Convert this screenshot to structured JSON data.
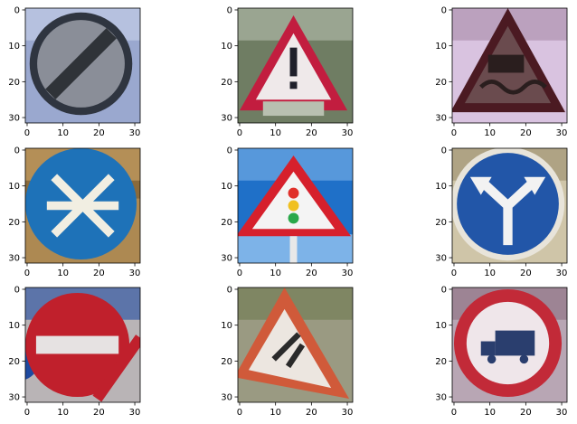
{
  "chart_data": [
    {
      "type": "image",
      "panel": 1,
      "content": "derestriction (end of all limits) sign",
      "xticks": [
        "0",
        "10",
        "20",
        "30"
      ],
      "yticks": [
        "0",
        "10",
        "20",
        "30"
      ],
      "xlim": [
        -0.5,
        31.5
      ],
      "ylim": [
        31.5,
        -0.5
      ],
      "colors": {
        "bg": "#9aa8cf",
        "bg2": "#c9d2ea",
        "ring": "#2f3540",
        "face": "#8a8e98",
        "band": "#2f3338"
      }
    },
    {
      "type": "image",
      "panel": 2,
      "content": "red-bordered triangular general caution (!) sign with supplementary plate",
      "xticks": [
        "0",
        "10",
        "20",
        "30"
      ],
      "yticks": [
        "0",
        "10",
        "20",
        "30"
      ],
      "xlim": [
        -0.5,
        31.5
      ],
      "ylim": [
        31.5,
        -0.5
      ],
      "colors": {
        "bg": "#6f7d63",
        "bg2": "#b8c0b0",
        "border": "#c21d3f",
        "face": "#efe9ea",
        "mark": "#1f1f2a"
      }
    },
    {
      "type": "image",
      "panel": 3,
      "content": "dark triangular slippery road sign",
      "xticks": [
        "0",
        "10",
        "20",
        "30"
      ],
      "yticks": [
        "0",
        "10",
        "20",
        "30"
      ],
      "xlim": [
        -0.5,
        31.5
      ],
      "ylim": [
        31.5,
        -0.5
      ],
      "colors": {
        "bg": "#d9c3e0",
        "bg2": "#a68aa6",
        "border": "#4b1a22",
        "face": "#6a4b4e",
        "mark": "#2a1e1e"
      }
    },
    {
      "type": "image",
      "panel": 4,
      "content": "blue circular mandatory sign with white arrows",
      "xticks": [
        "0",
        "10",
        "20",
        "30"
      ],
      "yticks": [
        "0",
        "10",
        "20",
        "30"
      ],
      "xlim": [
        -0.5,
        31.5
      ],
      "ylim": [
        31.5,
        -0.5
      ],
      "colors": {
        "bg": "#8a6a3a",
        "bg2": "#d0a86a",
        "face": "#1e72b8",
        "mark": "#f1eee2"
      }
    },
    {
      "type": "image",
      "panel": 5,
      "content": "red-bordered triangular traffic signals ahead sign on blue sky",
      "xticks": [
        "0",
        "10",
        "20",
        "30"
      ],
      "yticks": [
        "0",
        "10",
        "20",
        "30"
      ],
      "xlim": [
        -0.5,
        31.5
      ],
      "ylim": [
        31.5,
        -0.5
      ],
      "colors": {
        "bg": "#1f70c8",
        "bg2": "#7db3e8",
        "border": "#d6202c",
        "face": "#f4f4f4",
        "red": "#e0302a",
        "amber": "#f0c020",
        "green": "#2aa84a"
      }
    },
    {
      "type": "image",
      "panel": 6,
      "content": "blue circular keep left or right sign with forked arrows",
      "xticks": [
        "0",
        "10",
        "20",
        "30"
      ],
      "yticks": [
        "0",
        "10",
        "20",
        "30"
      ],
      "xlim": [
        -0.5,
        31.5
      ],
      "ylim": [
        31.5,
        -0.5
      ],
      "colors": {
        "bg": "#cfc5a8",
        "bg2": "#9a8c6c",
        "ring": "#e8e4da",
        "face": "#2256a8",
        "mark": "#f2f2f2"
      }
    },
    {
      "type": "image",
      "panel": 7,
      "content": "red circular no entry sign with white bar",
      "xticks": [
        "0",
        "10",
        "20",
        "30"
      ],
      "yticks": [
        "0",
        "10",
        "20",
        "30"
      ],
      "xlim": [
        -0.5,
        31.5
      ],
      "ylim": [
        31.5,
        -0.5
      ],
      "colors": {
        "bg": "#b9b4b6",
        "bg2": "#1e4aa0",
        "face": "#c0202c",
        "mark": "#e6e2e2"
      }
    },
    {
      "type": "image",
      "panel": 8,
      "content": "tilted red-bordered triangular roadworks sign",
      "xticks": [
        "0",
        "10",
        "20",
        "30"
      ],
      "yticks": [
        "0",
        "10",
        "20",
        "30"
      ],
      "xlim": [
        -0.5,
        31.5
      ],
      "ylim": [
        31.5,
        -0.5
      ],
      "colors": {
        "bg": "#9a9a82",
        "bg2": "#6e7a4e",
        "border": "#d05a3a",
        "face": "#ece6e0",
        "mark": "#2a2a2a"
      }
    },
    {
      "type": "image",
      "panel": 9,
      "content": "red-ringed circular no trucks sign",
      "xticks": [
        "0",
        "10",
        "20",
        "30"
      ],
      "yticks": [
        "0",
        "10",
        "20",
        "30"
      ],
      "xlim": [
        -0.5,
        31.5
      ],
      "ylim": [
        31.5,
        -0.5
      ],
      "colors": {
        "bg": "#b8a6b4",
        "bg2": "#8a6e7e",
        "ring": "#c22a38",
        "face": "#efe6ea",
        "mark": "#2a3e6e"
      }
    }
  ]
}
